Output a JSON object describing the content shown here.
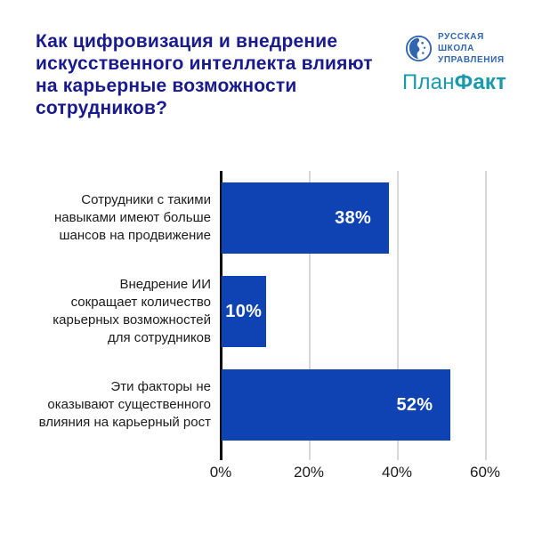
{
  "page": {
    "background": "#ffffff"
  },
  "header": {
    "title": "Как цифровизация и внедрение искусственного интеллекта влияют на карьерные возможности сотрудников?",
    "title_lines": [
      "Как цифровизация и внедрение",
      "искусственного интеллекта влияют",
      "на карьерные возможности",
      "сотрудников?"
    ],
    "title_color": "#181a8d",
    "logos": {
      "rsu": {
        "icon": "globe-face-icon",
        "lines": [
          "РУССКАЯ",
          "ШКОЛА",
          "УПРАВЛЕНИЯ"
        ],
        "color": "#2f65b1"
      },
      "planfact": {
        "part_regular": "План",
        "part_bold": "Факт",
        "color": "#1899ac"
      }
    }
  },
  "chart_data": {
    "type": "bar",
    "orientation": "horizontal",
    "title": "",
    "xlabel": "",
    "ylabel": "",
    "categories": [
      "Сотрудники с такими навыками имеют больше шансов на продвижение",
      "Внедрение ИИ сокращает количество карьерных возможностей для сотрудников",
      "Эти факторы не оказывают существенного влияния на карьерный рост"
    ],
    "category_lines": [
      [
        "Сотрудники с такими",
        "навыками имеют больше",
        "шансов на продвижение"
      ],
      [
        "Внедрение ИИ",
        "сокращает количество",
        "карьерных возможностей",
        "для сотрудников"
      ],
      [
        "Эти факторы не",
        "оказывают существенного",
        "влияния на карьерный рост"
      ]
    ],
    "values": [
      38,
      10,
      52
    ],
    "value_labels": [
      "38%",
      "10%",
      "52%"
    ],
    "xlim": [
      0,
      60
    ],
    "xticks": [
      0,
      20,
      40,
      60
    ],
    "xtick_labels": [
      "0%",
      "20%",
      "40%",
      "60%"
    ],
    "grid": true,
    "legend": false,
    "bar_color": "#0f42b3",
    "value_label_color": "#ffffff",
    "gridline_color": "#d8d8d8",
    "axis_color": "#111111",
    "label_color": "#1c1c1c"
  }
}
